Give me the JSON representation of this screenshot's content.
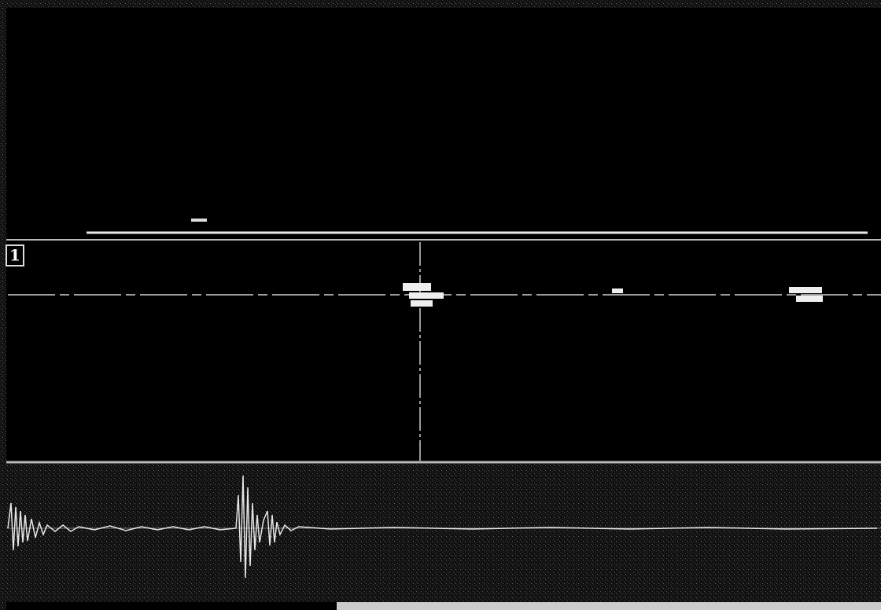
{
  "panels": {
    "gate": {
      "label": "1"
    }
  }
}
